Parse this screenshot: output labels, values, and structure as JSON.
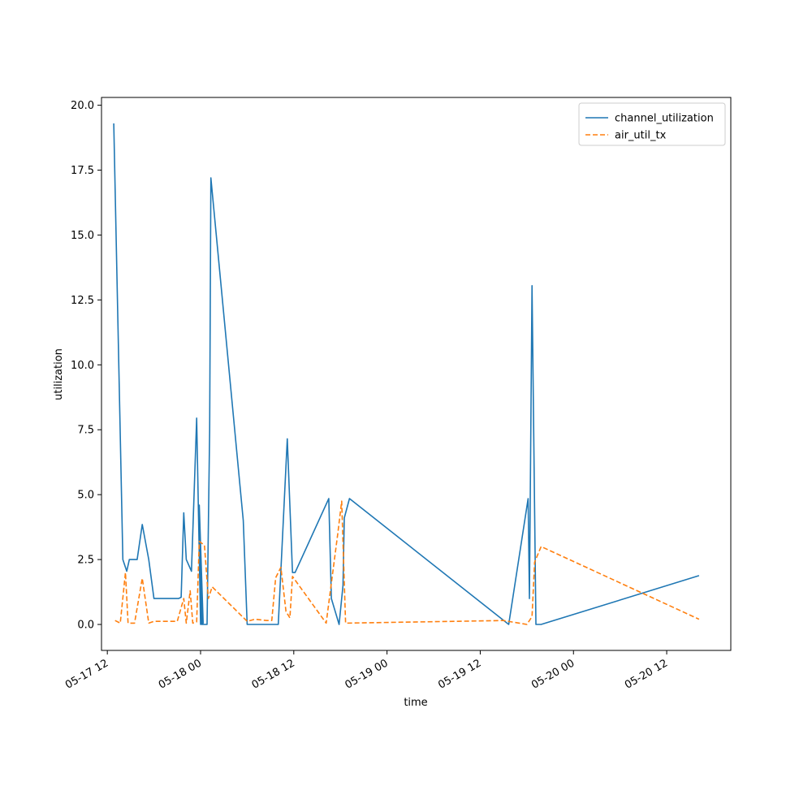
{
  "chart_data": {
    "type": "line",
    "xlabel": "time",
    "ylabel": "utilization",
    "x_axis": "datetime",
    "xlim": [
      "2025-05-17 11:15",
      "2025-05-20 20:15"
    ],
    "ylim": [
      -1.0,
      20.3
    ],
    "x_ticks": [
      "2025-05-17 12:00",
      "2025-05-18 00:00",
      "2025-05-18 12:00",
      "2025-05-19 00:00",
      "2025-05-19 12:00",
      "2025-05-20 00:00",
      "2025-05-20 12:00"
    ],
    "x_tick_labels": [
      "05-17 12",
      "05-18 00",
      "05-18 12",
      "05-19 00",
      "05-19 12",
      "05-20 00",
      "05-20 12"
    ],
    "y_ticks": [
      0.0,
      2.5,
      5.0,
      7.5,
      10.0,
      12.5,
      15.0,
      17.5,
      20.0
    ],
    "y_tick_labels": [
      "0.0",
      "2.5",
      "5.0",
      "7.5",
      "10.0",
      "12.5",
      "15.0",
      "17.5",
      "20.0"
    ],
    "grid": false,
    "legend_position": "top-right",
    "series": [
      {
        "name": "channel_utilization",
        "color": "#1f77b4",
        "style": "solid",
        "points": [
          [
            "2025-05-17 12:50",
            19.3
          ],
          [
            "2025-05-17 14:00",
            2.5
          ],
          [
            "2025-05-17 14:30",
            2.05
          ],
          [
            "2025-05-17 14:50",
            2.5
          ],
          [
            "2025-05-17 15:50",
            2.5
          ],
          [
            "2025-05-17 16:30",
            3.85
          ],
          [
            "2025-05-17 17:20",
            2.5
          ],
          [
            "2025-05-17 18:00",
            1.0
          ],
          [
            "2025-05-17 21:10",
            1.0
          ],
          [
            "2025-05-17 21:30",
            1.05
          ],
          [
            "2025-05-17 21:50",
            4.3
          ],
          [
            "2025-05-17 22:10",
            2.5
          ],
          [
            "2025-05-17 22:50",
            2.05
          ],
          [
            "2025-05-17 23:30",
            7.95
          ],
          [
            "2025-05-18 00:00",
            0.0
          ],
          [
            "2025-05-18 00:20",
            0.05
          ],
          [
            "2025-05-17 23:50",
            4.6
          ],
          [
            "2025-05-18 00:10",
            0.0
          ],
          [
            "2025-05-18 00:50",
            0.0
          ],
          [
            "2025-05-18 01:10",
            7.5
          ],
          [
            "2025-05-18 01:20",
            17.2
          ],
          [
            "2025-05-18 05:30",
            4.0
          ],
          [
            "2025-05-18 06:00",
            0.0
          ],
          [
            "2025-05-18 10:00",
            0.0
          ],
          [
            "2025-05-18 11:10",
            7.15
          ],
          [
            "2025-05-18 11:50",
            2.0
          ],
          [
            "2025-05-18 12:10",
            2.0
          ],
          [
            "2025-05-18 16:30",
            4.85
          ],
          [
            "2025-05-18 16:50",
            1.0
          ],
          [
            "2025-05-18 17:50",
            0.0
          ],
          [
            "2025-05-18 18:20",
            1.5
          ],
          [
            "2025-05-18 18:30",
            4.1
          ],
          [
            "2025-05-18 19:10",
            4.85
          ],
          [
            "2025-05-19 15:40",
            0.0
          ],
          [
            "2025-05-19 18:10",
            4.85
          ],
          [
            "2025-05-19 18:20",
            1.0
          ],
          [
            "2025-05-19 18:40",
            13.05
          ],
          [
            "2025-05-19 19:10",
            0.0
          ],
          [
            "2025-05-19 19:50",
            0.0
          ],
          [
            "2025-05-20 16:10",
            1.88
          ]
        ]
      },
      {
        "name": "air_util_tx",
        "color": "#ff7f0e",
        "style": "dashed",
        "points": [
          [
            "2025-05-17 13:00",
            0.15
          ],
          [
            "2025-05-17 13:40",
            0.05
          ],
          [
            "2025-05-17 14:20",
            2.0
          ],
          [
            "2025-05-17 14:40",
            0.05
          ],
          [
            "2025-05-17 15:30",
            0.05
          ],
          [
            "2025-05-17 16:30",
            1.78
          ],
          [
            "2025-05-17 17:20",
            0.05
          ],
          [
            "2025-05-17 18:00",
            0.12
          ],
          [
            "2025-05-17 21:00",
            0.12
          ],
          [
            "2025-05-17 21:50",
            1.0
          ],
          [
            "2025-05-17 22:10",
            0.05
          ],
          [
            "2025-05-17 22:40",
            1.3
          ],
          [
            "2025-05-17 23:00",
            0.05
          ],
          [
            "2025-05-17 23:30",
            0.1
          ],
          [
            "2025-05-17 23:50",
            3.2
          ],
          [
            "2025-05-18 00:30",
            3.05
          ],
          [
            "2025-05-18 01:00",
            1.0
          ],
          [
            "2025-05-18 01:30",
            1.45
          ],
          [
            "2025-05-18 06:00",
            0.12
          ],
          [
            "2025-05-18 07:00",
            0.2
          ],
          [
            "2025-05-18 08:30",
            0.15
          ],
          [
            "2025-05-18 09:10",
            0.15
          ],
          [
            "2025-05-18 09:40",
            1.8
          ],
          [
            "2025-05-18 10:20",
            2.2
          ],
          [
            "2025-05-18 11:00",
            0.5
          ],
          [
            "2025-05-18 11:30",
            0.25
          ],
          [
            "2025-05-18 11:50",
            1.85
          ],
          [
            "2025-05-18 16:10",
            0.05
          ],
          [
            "2025-05-18 17:40",
            3.5
          ],
          [
            "2025-05-18 18:10",
            4.75
          ],
          [
            "2025-05-18 18:40",
            0.05
          ],
          [
            "2025-05-19 15:00",
            0.15
          ],
          [
            "2025-05-19 18:00",
            0.0
          ],
          [
            "2025-05-19 18:40",
            0.3
          ],
          [
            "2025-05-19 19:00",
            2.4
          ],
          [
            "2025-05-19 19:50",
            3.0
          ],
          [
            "2025-05-20 16:10",
            0.2
          ]
        ]
      }
    ]
  }
}
